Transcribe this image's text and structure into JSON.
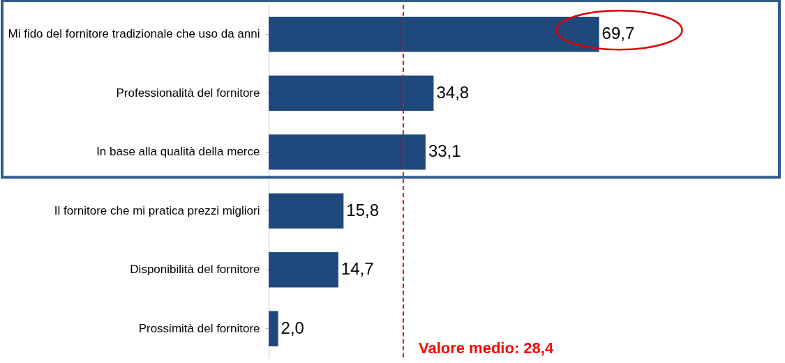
{
  "chart_data": {
    "type": "bar",
    "orientation": "horizontal",
    "categories": [
      "Mi fido del fornitore tradizionale  che uso da anni",
      "Professionalità del fornitore",
      "In base alla qualità della merce",
      "Il fornitore che mi pratica prezzi migliori",
      "Disponibilità del fornitore",
      "Prossimità del fornitore"
    ],
    "values": [
      69.7,
      34.8,
      33.1,
      15.8,
      14.7,
      2.0
    ],
    "value_labels": [
      "69,7",
      "34,8",
      "33,1",
      "15,8",
      "14,7",
      "2,0"
    ],
    "color": "#1f497d",
    "ref_lines": [
      {
        "axis": "x",
        "value": 28.4,
        "label": "Valore medio: 28,4",
        "color": "#ff0000",
        "line_style": "dashed"
      }
    ]
  }
}
